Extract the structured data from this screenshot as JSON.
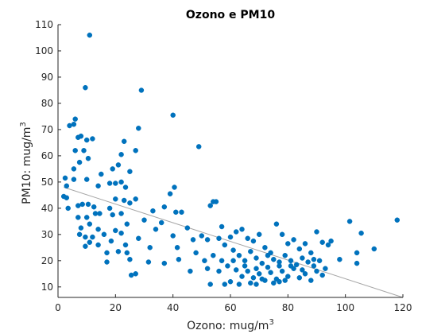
{
  "chart_data": {
    "type": "scatter",
    "title": "Ozono e PM10",
    "xlabel": {
      "base": "Ozono: mug/m",
      "sup": "3"
    },
    "ylabel": {
      "base": "PM10: mug/m",
      "sup": "3"
    },
    "xlim": [
      0,
      120
    ],
    "ylim": [
      6,
      110
    ],
    "xticks": [
      0,
      20,
      40,
      60,
      80,
      100,
      120
    ],
    "yticks": [
      10,
      20,
      30,
      40,
      50,
      60,
      70,
      80,
      90,
      100,
      110
    ],
    "grid": false,
    "colors": {
      "points": "#0072BD",
      "trend": "#a6a6a6",
      "axis": "#262626"
    },
    "trendline": {
      "x": [
        2,
        120
      ],
      "y": [
        48,
        6
      ]
    },
    "points": [
      [
        11,
        106
      ],
      [
        9.5,
        86
      ],
      [
        29,
        85
      ],
      [
        40,
        75.5
      ],
      [
        4,
        71.5
      ],
      [
        6,
        74
      ],
      [
        5.5,
        72
      ],
      [
        8,
        67.5
      ],
      [
        7,
        67
      ],
      [
        10,
        66
      ],
      [
        12,
        66.5
      ],
      [
        28,
        70.5
      ],
      [
        49,
        63.5
      ],
      [
        23,
        65.5
      ],
      [
        6,
        62
      ],
      [
        9,
        62
      ],
      [
        22,
        60.5
      ],
      [
        27,
        62
      ],
      [
        10.5,
        59
      ],
      [
        7.5,
        57.5
      ],
      [
        21,
        56.5
      ],
      [
        19,
        55
      ],
      [
        5.5,
        55
      ],
      [
        25,
        54
      ],
      [
        15,
        53
      ],
      [
        2.5,
        51.5
      ],
      [
        5.5,
        51
      ],
      [
        10,
        51
      ],
      [
        3,
        48.5
      ],
      [
        18,
        49.5
      ],
      [
        20,
        49.5
      ],
      [
        22,
        50
      ],
      [
        14,
        48.5
      ],
      [
        23.5,
        48
      ],
      [
        39,
        45.5
      ],
      [
        40.5,
        48
      ],
      [
        2,
        44.5
      ],
      [
        3,
        44
      ],
      [
        27,
        43.5
      ],
      [
        20,
        43.5
      ],
      [
        23,
        43
      ],
      [
        25,
        42
      ],
      [
        10.5,
        41.5
      ],
      [
        53,
        41
      ],
      [
        54,
        42.5
      ],
      [
        55,
        42.5
      ],
      [
        37,
        40.5
      ],
      [
        12.5,
        40.5
      ],
      [
        18,
        40
      ],
      [
        3.5,
        40
      ],
      [
        7,
        41
      ],
      [
        8.5,
        41.5
      ],
      [
        33,
        39
      ],
      [
        41,
        38.5
      ],
      [
        43,
        38.5
      ],
      [
        13,
        38
      ],
      [
        14.5,
        38
      ],
      [
        22,
        38
      ],
      [
        19,
        37.5
      ],
      [
        7,
        36.5
      ],
      [
        10,
        36.5
      ],
      [
        30,
        35.5
      ],
      [
        11,
        34
      ],
      [
        24,
        34
      ],
      [
        36,
        34.5
      ],
      [
        8,
        32.5
      ],
      [
        14,
        32
      ],
      [
        34,
        32
      ],
      [
        45,
        32.5
      ],
      [
        20,
        31.5
      ],
      [
        22,
        30.5
      ],
      [
        16,
        30
      ],
      [
        40,
        29.5
      ],
      [
        50,
        29.5
      ],
      [
        28,
        28.5
      ],
      [
        7.5,
        30
      ],
      [
        9.5,
        29
      ],
      [
        12,
        29
      ],
      [
        18.5,
        27.5
      ],
      [
        11,
        27
      ],
      [
        14,
        26
      ],
      [
        23.5,
        26
      ],
      [
        9.5,
        25.5
      ],
      [
        32,
        25
      ],
      [
        41.5,
        25
      ],
      [
        21,
        23.5
      ],
      [
        24,
        23
      ],
      [
        17,
        23
      ],
      [
        25,
        20.5
      ],
      [
        31.5,
        19.5
      ],
      [
        37,
        19
      ],
      [
        42,
        20.5
      ],
      [
        17,
        19.5
      ],
      [
        27,
        15
      ],
      [
        25.5,
        14.5
      ],
      [
        46,
        16
      ],
      [
        52,
        17
      ],
      [
        56,
        16
      ],
      [
        53,
        11
      ],
      [
        58,
        11
      ],
      [
        101.5,
        35
      ],
      [
        118,
        35.5
      ],
      [
        105.5,
        30.5
      ],
      [
        104,
        23
      ],
      [
        110,
        24.5
      ],
      [
        104,
        19
      ],
      [
        98,
        20.5
      ],
      [
        60,
        29
      ],
      [
        62,
        31
      ],
      [
        64,
        32
      ],
      [
        66,
        28.5
      ],
      [
        68,
        27.5
      ],
      [
        70,
        30
      ],
      [
        72,
        25
      ],
      [
        74,
        23
      ],
      [
        76,
        34
      ],
      [
        78,
        30
      ],
      [
        80,
        26.5
      ],
      [
        82,
        28
      ],
      [
        84,
        24.5
      ],
      [
        86,
        26.5
      ],
      [
        88,
        23
      ],
      [
        90,
        31
      ],
      [
        92,
        27
      ],
      [
        94,
        26
      ],
      [
        95,
        27.5
      ],
      [
        56,
        28.5
      ],
      [
        58,
        26
      ],
      [
        61,
        24
      ],
      [
        63,
        22
      ],
      [
        65,
        20
      ],
      [
        67,
        23.5
      ],
      [
        69,
        21
      ],
      [
        71,
        19
      ],
      [
        73,
        22
      ],
      [
        75,
        20.5
      ],
      [
        77,
        18
      ],
      [
        79,
        22
      ],
      [
        81,
        20
      ],
      [
        83,
        18.5
      ],
      [
        85,
        21
      ],
      [
        87,
        19.5
      ],
      [
        89,
        18
      ],
      [
        91,
        20
      ],
      [
        93,
        17
      ],
      [
        59,
        18
      ],
      [
        62,
        16.5
      ],
      [
        64,
        14
      ],
      [
        66,
        16
      ],
      [
        68,
        13.5
      ],
      [
        70,
        15
      ],
      [
        72,
        12.5
      ],
      [
        74,
        15.5
      ],
      [
        76,
        13
      ],
      [
        78,
        16
      ],
      [
        80,
        14
      ],
      [
        82,
        17
      ],
      [
        84,
        13.5
      ],
      [
        86,
        15
      ],
      [
        88,
        12.5
      ],
      [
        90,
        16
      ],
      [
        92,
        14.5
      ],
      [
        60,
        12
      ],
      [
        63,
        11
      ],
      [
        67,
        11.5
      ],
      [
        69,
        11
      ],
      [
        71,
        13
      ],
      [
        75,
        11.5
      ],
      [
        77,
        12
      ],
      [
        79,
        12.5
      ],
      [
        57,
        20
      ],
      [
        61,
        20
      ],
      [
        65,
        18
      ],
      [
        69,
        17
      ],
      [
        73,
        17.5
      ],
      [
        77,
        19.5
      ],
      [
        81,
        18
      ],
      [
        85,
        16.5
      ],
      [
        89,
        20.5
      ],
      [
        48,
        23
      ],
      [
        51,
        20
      ],
      [
        54,
        22
      ],
      [
        47,
        28
      ],
      [
        52,
        28
      ],
      [
        57,
        33
      ]
    ]
  }
}
